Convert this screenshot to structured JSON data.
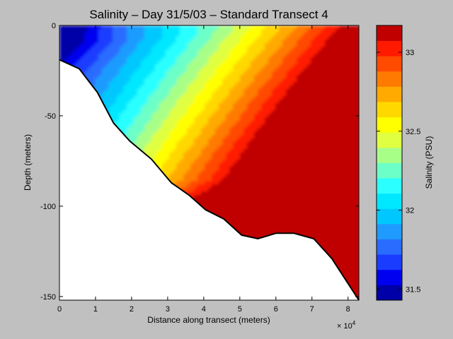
{
  "chart_data": {
    "type": "heatmap",
    "subtype": "filled-contour",
    "title": "Salinity – Day 31/5/03 – Standard Transect 4",
    "xlabel": "Distance along transect (meters)",
    "ylabel": "Depth (meters)",
    "x_exponent_label": "× 10",
    "x_exponent_power": "4",
    "x_scale_factor": 10000,
    "xlim": [
      0,
      8.3
    ],
    "ylim": [
      -152,
      0
    ],
    "x_ticks": [
      0,
      1,
      2,
      3,
      4,
      5,
      6,
      7,
      8
    ],
    "y_ticks": [
      0,
      -50,
      -100,
      -150
    ],
    "colorbar": {
      "label": "Salinity (PSU)",
      "range": [
        31.43,
        33.17
      ],
      "ticks": [
        31.5,
        32,
        32.5,
        33
      ],
      "levels": 18,
      "colors": [
        "#0000a8",
        "#0000f0",
        "#1a3cff",
        "#2a6cff",
        "#1f9bff",
        "#00c8ff",
        "#00e8ff",
        "#2cffff",
        "#6cffc8",
        "#a8ff88",
        "#e0ff40",
        "#ffff00",
        "#ffd800",
        "#ffaa00",
        "#ff7a00",
        "#ff4a00",
        "#ff1a00",
        "#c00000"
      ]
    },
    "bottom_profile": [
      {
        "x": 0,
        "depth": -19
      },
      {
        "x": 0.55,
        "depth": -24
      },
      {
        "x": 1.05,
        "depth": -37
      },
      {
        "x": 1.5,
        "depth": -54
      },
      {
        "x": 1.95,
        "depth": -64
      },
      {
        "x": 2.55,
        "depth": -74
      },
      {
        "x": 3.1,
        "depth": -87
      },
      {
        "x": 3.6,
        "depth": -94
      },
      {
        "x": 4.05,
        "depth": -102
      },
      {
        "x": 4.55,
        "depth": -107
      },
      {
        "x": 5.05,
        "depth": -116
      },
      {
        "x": 5.5,
        "depth": -118
      },
      {
        "x": 6.0,
        "depth": -115
      },
      {
        "x": 6.5,
        "depth": -115
      },
      {
        "x": 7.05,
        "depth": -118
      },
      {
        "x": 7.55,
        "depth": -129
      },
      {
        "x": 8.3,
        "depth": -152
      }
    ],
    "grid": false,
    "legend": "colorbar-right"
  }
}
